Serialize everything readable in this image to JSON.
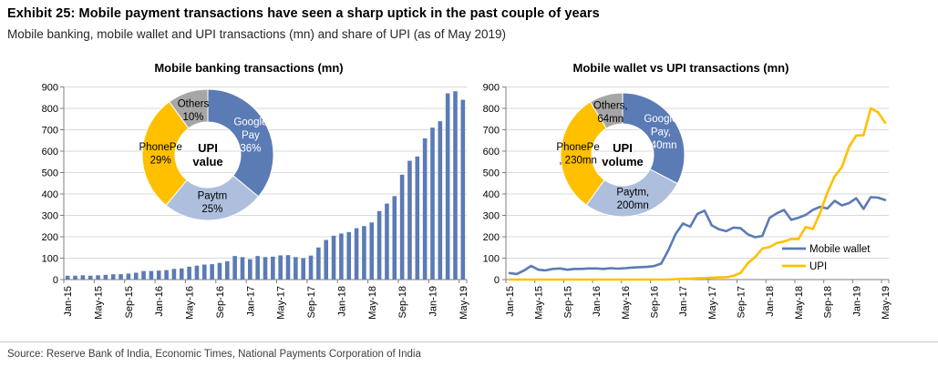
{
  "header": {
    "title": "Exhibit 25: Mobile payment transactions have seen a sharp uptick in the past couple of years",
    "subtitle": "Mobile banking, mobile wallet and UPI transactions (mn) and share of UPI (as of May 2019)"
  },
  "source": "Source: Reserve Bank of India, Economic Times, National Payments Corporation of India",
  "colors": {
    "blue": "#5B7BB5",
    "light_blue": "#AEBEDD",
    "yellow": "#FFC000",
    "gray": "#A6A6A6",
    "grid": "#D9D9D9",
    "axis": "#7F7F7F",
    "text": "#000000"
  },
  "chart_data": [
    {
      "type": "bar",
      "title": "Mobile banking transactions (mn)",
      "ylabel": "",
      "xlabel": "",
      "ylim": [
        0,
        900
      ],
      "ytick_step": 100,
      "xlabel_every": 4,
      "grid": true,
      "bar_color": "blue",
      "categories": [
        "Jan-15",
        "Feb-15",
        "Mar-15",
        "Apr-15",
        "May-15",
        "Jun-15",
        "Jul-15",
        "Aug-15",
        "Sep-15",
        "Oct-15",
        "Nov-15",
        "Dec-15",
        "Jan-16",
        "Feb-16",
        "Mar-16",
        "Apr-16",
        "May-16",
        "Jun-16",
        "Jul-16",
        "Aug-16",
        "Sep-16",
        "Oct-16",
        "Nov-16",
        "Dec-16",
        "Jan-17",
        "Feb-17",
        "Mar-17",
        "Apr-17",
        "May-17",
        "Jun-17",
        "Jul-17",
        "Aug-17",
        "Sep-17",
        "Oct-17",
        "Nov-17",
        "Dec-17",
        "Jan-18",
        "Feb-18",
        "Mar-18",
        "Apr-18",
        "May-18",
        "Jun-18",
        "Jul-18",
        "Aug-18",
        "Sep-18",
        "Oct-18",
        "Nov-18",
        "Dec-18",
        "Jan-19",
        "Feb-19",
        "Mar-19",
        "Apr-19",
        "May-19"
      ],
      "values": [
        18,
        18,
        20,
        18,
        20,
        22,
        25,
        25,
        28,
        32,
        40,
        40,
        42,
        44,
        50,
        52,
        60,
        65,
        70,
        72,
        78,
        86,
        110,
        105,
        95,
        110,
        105,
        107,
        113,
        114,
        105,
        100,
        112,
        150,
        185,
        205,
        215,
        222,
        240,
        250,
        267,
        320,
        355,
        390,
        490,
        555,
        575,
        660,
        710,
        740,
        870,
        880,
        840
      ],
      "inset_donut": {
        "center_label": [
          "UPI",
          "value"
        ],
        "slices": [
          {
            "name": "Google Pay",
            "value": 36,
            "unit": "%",
            "color": "blue",
            "label_lines": [
              "Google",
              "Pay",
              "36%"
            ],
            "label_color": "#FFFFFF"
          },
          {
            "name": "Paytm",
            "value": 25,
            "unit": "%",
            "color": "light_blue",
            "label_lines": [
              "Paytm",
              "25%"
            ],
            "label_color": "#000000"
          },
          {
            "name": "PhonePe",
            "value": 29,
            "unit": "%",
            "color": "yellow",
            "label_lines": [
              "PhonePe",
              "29%"
            ],
            "label_color": "#000000"
          },
          {
            "name": "Others",
            "value": 10,
            "unit": "%",
            "color": "gray",
            "label_lines": [
              "Others",
              "10%"
            ],
            "label_color": "#000000"
          }
        ]
      }
    },
    {
      "type": "line",
      "title": "Mobile wallet vs UPI transactions (mn)",
      "ylabel": "",
      "xlabel": "",
      "ylim": [
        0,
        900
      ],
      "ytick_step": 100,
      "xlabel_every": 4,
      "grid": true,
      "legend_position": "inside-right",
      "categories": [
        "Jan-15",
        "Feb-15",
        "Mar-15",
        "Apr-15",
        "May-15",
        "Jun-15",
        "Jul-15",
        "Aug-15",
        "Sep-15",
        "Oct-15",
        "Nov-15",
        "Dec-15",
        "Jan-16",
        "Feb-16",
        "Mar-16",
        "Apr-16",
        "May-16",
        "Jun-16",
        "Jul-16",
        "Aug-16",
        "Sep-16",
        "Oct-16",
        "Nov-16",
        "Dec-16",
        "Jan-17",
        "Feb-17",
        "Mar-17",
        "Apr-17",
        "May-17",
        "Jun-17",
        "Jul-17",
        "Aug-17",
        "Sep-17",
        "Oct-17",
        "Nov-17",
        "Dec-17",
        "Jan-18",
        "Feb-18",
        "Mar-18",
        "Apr-18",
        "May-18",
        "Jun-18",
        "Jul-18",
        "Aug-18",
        "Sep-18",
        "Oct-18",
        "Nov-18",
        "Dec-18",
        "Jan-19",
        "Feb-19",
        "Mar-19",
        "Apr-19",
        "May-19"
      ],
      "series": [
        {
          "name": "Mobile wallet",
          "color": "blue",
          "values": [
            30,
            26,
            42,
            64,
            46,
            43,
            50,
            52,
            46,
            50,
            50,
            52,
            52,
            50,
            53,
            51,
            53,
            56,
            58,
            59,
            63,
            75,
            138,
            213,
            262,
            247,
            307,
            322,
            253,
            235,
            226,
            243,
            240,
            211,
            198,
            204,
            288,
            310,
            325,
            279,
            289,
            302,
            326,
            340,
            332,
            368,
            347,
            357,
            380,
            330,
            385,
            383,
            372
          ]
        },
        {
          "name": "UPI",
          "color": "yellow",
          "values": [
            0,
            0,
            0,
            0,
            0,
            0,
            0,
            0,
            0,
            0,
            0,
            0,
            0,
            0,
            0,
            0,
            0,
            0,
            0,
            0,
            0,
            0,
            0,
            2,
            4,
            4,
            6,
            7,
            9,
            10,
            11,
            17,
            31,
            77,
            105,
            145,
            152,
            171,
            178,
            190,
            190,
            246,
            236,
            312,
            406,
            482,
            525,
            620,
            673,
            674,
            800,
            782,
            733
          ]
        }
      ],
      "inset_donut": {
        "center_label": [
          "UPI",
          "volume"
        ],
        "slices": [
          {
            "name": "Google Pay",
            "value": 240,
            "unit": "mn",
            "color": "blue",
            "label_lines": [
              "Google",
              "Pay,",
              "240mn"
            ],
            "label_color": "#FFFFFF"
          },
          {
            "name": "Paytm",
            "value": 200,
            "unit": "mn",
            "color": "light_blue",
            "label_lines": [
              "Paytm,",
              "200mn"
            ],
            "label_color": "#000000"
          },
          {
            "name": "PhonePe",
            "value": 230,
            "unit": "mn",
            "color": "yellow",
            "label_lines": [
              "PhonePe",
              ", 230mn"
            ],
            "label_color": "#000000"
          },
          {
            "name": "Others",
            "value": 64,
            "unit": "mn",
            "color": "gray",
            "label_lines": [
              "Others,",
              "64mn"
            ],
            "label_color": "#000000"
          }
        ]
      }
    }
  ]
}
